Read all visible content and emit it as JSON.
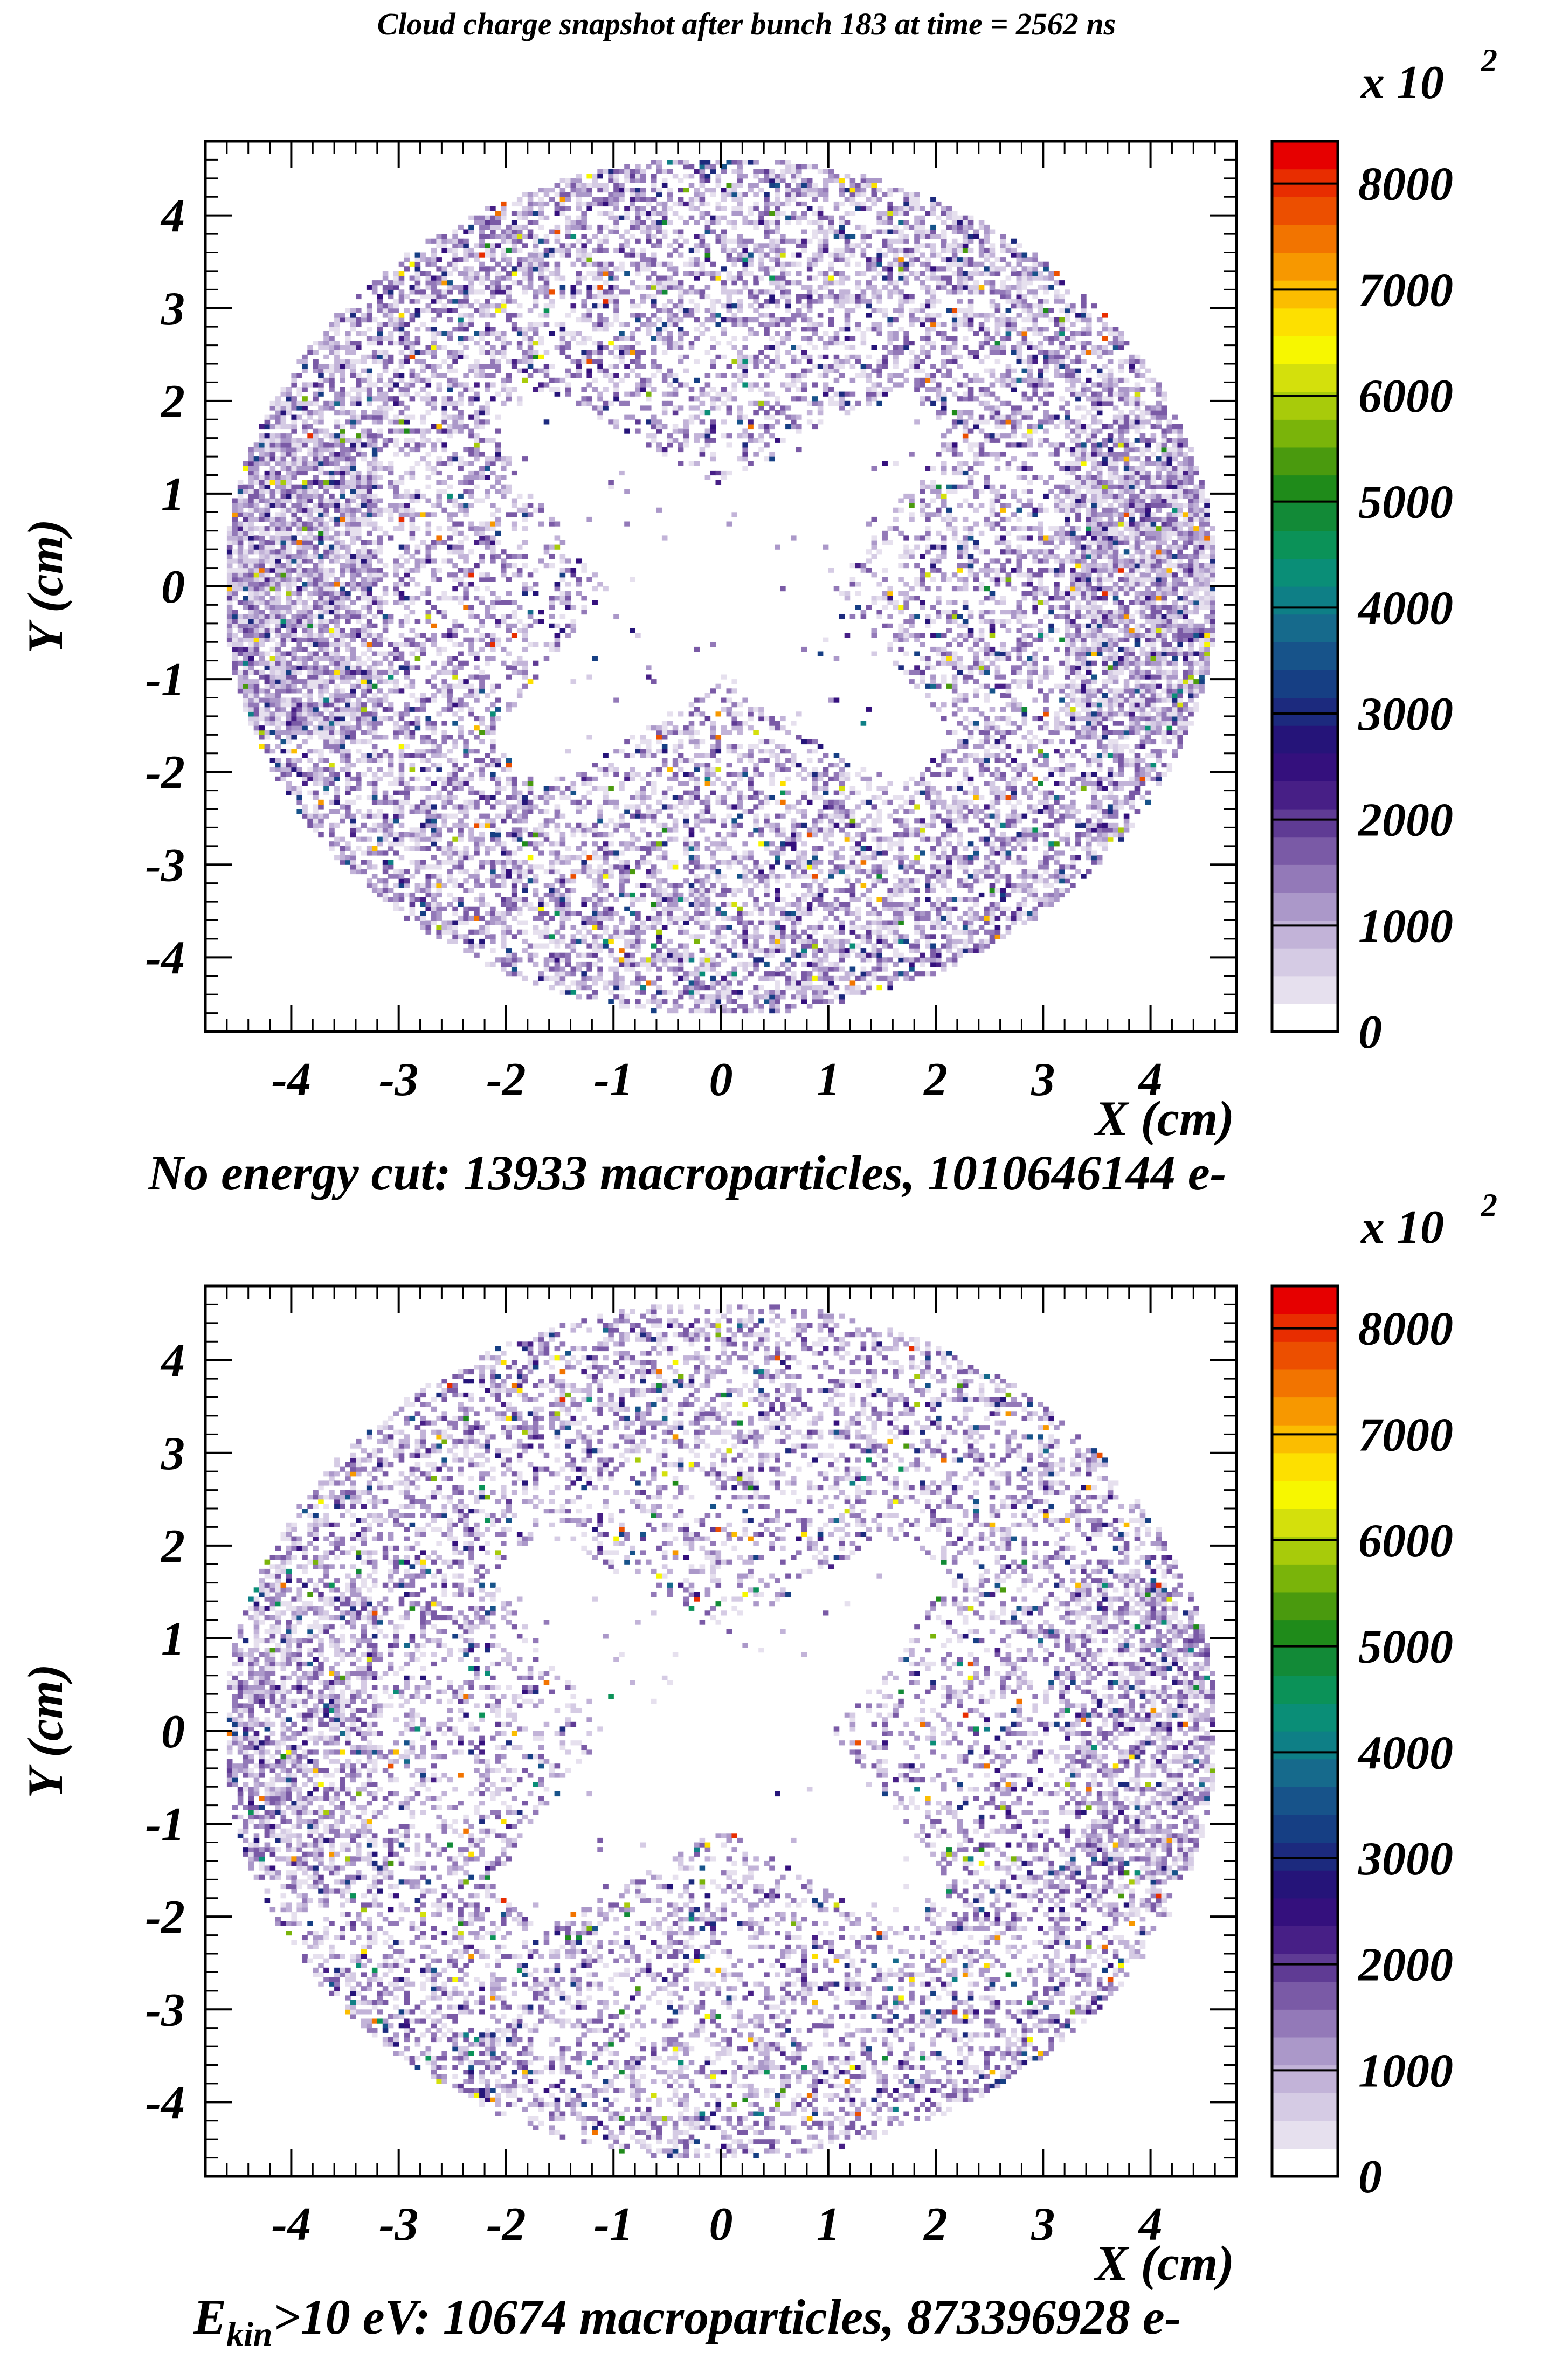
{
  "title": "Cloud charge snapshot after bunch 183 at time = 2562 ns",
  "panels": [
    {
      "caption": "No energy cut: 13933 macroparticles, 1010646144 e-",
      "xlabel": "X (cm)",
      "ylabel": "Y (cm)",
      "colorbar_multiplier": "x 10",
      "colorbar_exponent": "2"
    },
    {
      "caption_sub": "kin",
      "caption_main": "E",
      "caption_rest": ">10 eV: 10674 macroparticles, 873396928  e-",
      "xlabel": "X (cm)",
      "ylabel": "Y (cm)",
      "colorbar_multiplier": "x 10",
      "colorbar_exponent": "2"
    }
  ],
  "chart_data": [
    {
      "type": "heatmap",
      "title": "Cloud charge snapshot after bunch 183 at time = 2562 ns",
      "xlabel": "X (cm)",
      "ylabel": "Y (cm)",
      "xlim": [
        -4.8,
        4.8
      ],
      "ylim": [
        -4.8,
        4.8
      ],
      "x_ticks": [
        "-4",
        "-3",
        "-2",
        "-1",
        "0",
        "1",
        "2",
        "3",
        "4"
      ],
      "y_ticks": [
        "-4",
        "-3",
        "-2",
        "-1",
        "0",
        "1",
        "2",
        "3",
        "4"
      ],
      "z_range": [
        0,
        8400
      ],
      "z_ticks": [
        "0",
        "1000",
        "2000",
        "3000",
        "4000",
        "5000",
        "6000",
        "7000",
        "8000"
      ],
      "z_multiplier": "x 10^2",
      "distribution": "ring of electron cloud inside circular beam pipe of radius ~4.6 cm, depleted X-shaped region around the center",
      "macroparticles": 13933,
      "electrons": 1010646144,
      "caption": "No energy cut: 13933 macroparticles, 1010646144 e-"
    },
    {
      "type": "heatmap",
      "xlabel": "X (cm)",
      "ylabel": "Y (cm)",
      "xlim": [
        -4.8,
        4.8
      ],
      "ylim": [
        -4.8,
        4.8
      ],
      "x_ticks": [
        "-4",
        "-3",
        "-2",
        "-1",
        "0",
        "1",
        "2",
        "3",
        "4"
      ],
      "y_ticks": [
        "-4",
        "-3",
        "-2",
        "-1",
        "0",
        "1",
        "2",
        "3",
        "4"
      ],
      "z_range": [
        0,
        8400
      ],
      "z_ticks": [
        "0",
        "1000",
        "2000",
        "3000",
        "4000",
        "5000",
        "6000",
        "7000",
        "8000"
      ],
      "z_multiplier": "x 10^2",
      "distribution": "same ring distribution with kinetic energy cut, sparser",
      "macroparticles": 10674,
      "electrons": 873396928,
      "caption": "E_kin>10 eV: 10674 macroparticles, 873396928  e-"
    }
  ],
  "palette": [
    "#ffffff",
    "#e6e0ee",
    "#d5cbe4",
    "#c2b3d8",
    "#ab98c9",
    "#9379b8",
    "#7a5aa6",
    "#5f3b94",
    "#471f86",
    "#34107d",
    "#251479",
    "#1c2a7e",
    "#163f84",
    "#17538a",
    "#166a8c",
    "#0e7f86",
    "#0a8e77",
    "#0b9258",
    "#128a37",
    "#1f8b1a",
    "#4a9a0e",
    "#7ab40a",
    "#a8cb0a",
    "#d4e00c",
    "#f7f700",
    "#fde000",
    "#fbbd00",
    "#f79800",
    "#f27400",
    "#ec4f00",
    "#e82d00",
    "#e60000"
  ]
}
